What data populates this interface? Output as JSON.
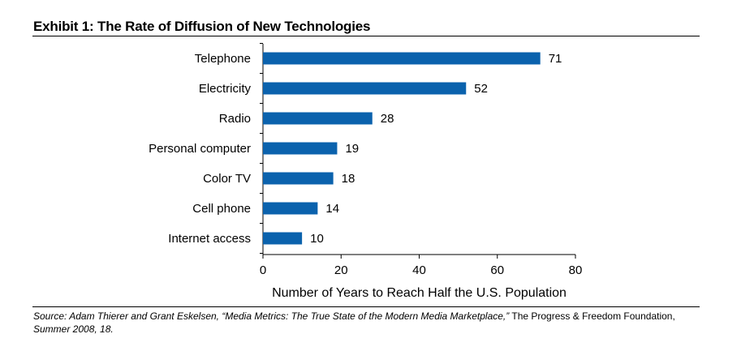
{
  "title": "Exhibit 1: The Rate of Diffusion of New Technologies",
  "chart_data": {
    "type": "bar",
    "orientation": "horizontal",
    "categories": [
      "Telephone",
      "Electricity",
      "Radio",
      "Personal computer",
      "Color TV",
      "Cell phone",
      "Internet access"
    ],
    "values": [
      71,
      52,
      28,
      19,
      18,
      14,
      10
    ],
    "xlabel": "Number of Years to Reach Half the U.S. Population",
    "ylabel": "",
    "xlim": [
      0,
      80
    ],
    "ticks": [
      "0",
      "20",
      "40",
      "60",
      "80"
    ],
    "bar_color": "#0b62ad",
    "grid": false
  },
  "source": {
    "prefix": "Source: Adam Thierer and Grant Eskelsen, “Media Metrics: The True State of the Modern Media Marketplace,”",
    "middle": " The Progress & Freedom Foundation,",
    "suffix": "Summer 2008, 18."
  }
}
